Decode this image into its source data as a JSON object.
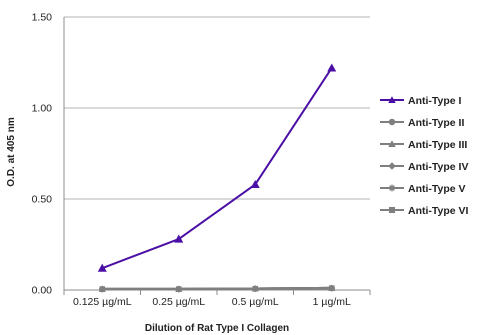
{
  "chart_data": {
    "type": "line",
    "xlabel": "Dilution of Rat Type I Collagen",
    "ylabel": "O.D. at 405 nm",
    "categories": [
      "0.125 µg/mL",
      "0.25 µg/mL",
      "0.5 µg/mL",
      "1 µg/mL"
    ],
    "ylim": [
      0,
      1.5
    ],
    "yticks": [
      "0.00",
      "0.50",
      "1.00",
      "1.50"
    ],
    "ytick_values": [
      0,
      0.5,
      1.0,
      1.5
    ],
    "grid": "horizontal",
    "legend_position": "right",
    "series": [
      {
        "name": "Anti-Type I",
        "values": [
          0.12,
          0.28,
          0.58,
          1.22
        ],
        "color": "#4b0fa6",
        "marker": "triangle"
      },
      {
        "name": "Anti-Type II",
        "values": [
          0.005,
          0.005,
          0.007,
          0.01
        ],
        "color": "#7f7f7f",
        "marker": "circle"
      },
      {
        "name": "Anti-Type III",
        "values": [
          0.005,
          0.005,
          0.007,
          0.01
        ],
        "color": "#7f7f7f",
        "marker": "triangle"
      },
      {
        "name": "Anti-Type IV",
        "values": [
          0.005,
          0.005,
          0.007,
          0.01
        ],
        "color": "#7f7f7f",
        "marker": "diamond"
      },
      {
        "name": "Anti-Type V",
        "values": [
          0.005,
          0.005,
          0.007,
          0.01
        ],
        "color": "#7f7f7f",
        "marker": "star"
      },
      {
        "name": "Anti-Type VI",
        "values": [
          0.005,
          0.005,
          0.007,
          0.01
        ],
        "color": "#7f7f7f",
        "marker": "square"
      }
    ]
  }
}
